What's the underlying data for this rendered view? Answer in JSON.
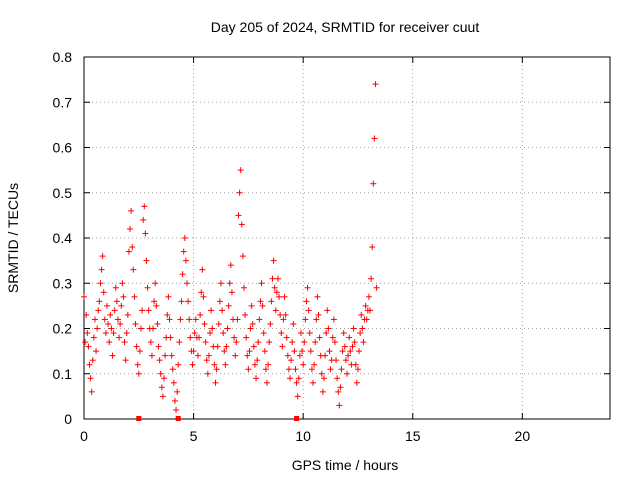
{
  "chart_data": {
    "type": "scatter",
    "title": "Day 205 of 2024, SRMTID for receiver cuut",
    "xlabel": "GPS time / hours",
    "ylabel": "SRMTID / TECUs",
    "xlim": [
      0,
      24
    ],
    "ylim": [
      0,
      0.8
    ],
    "xticks": [
      0,
      5,
      10,
      15,
      20
    ],
    "yticks": [
      0,
      0.1,
      0.2,
      0.3,
      0.4,
      0.5,
      0.6,
      0.7,
      0.8
    ],
    "grid": true,
    "marker": "plus",
    "color": "#ff0000",
    "series": [
      {
        "name": "SRMTID",
        "points": [
          [
            0.0,
            0.27
          ],
          [
            0.05,
            0.17
          ],
          [
            0.1,
            0.23
          ],
          [
            0.15,
            0.19
          ],
          [
            0.2,
            0.16
          ],
          [
            0.25,
            0.12
          ],
          [
            0.3,
            0.09
          ],
          [
            0.35,
            0.06
          ],
          [
            0.4,
            0.13
          ],
          [
            0.45,
            0.18
          ],
          [
            0.5,
            0.22
          ],
          [
            0.55,
            0.15
          ],
          [
            0.6,
            0.2
          ],
          [
            0.65,
            0.24
          ],
          [
            0.7,
            0.26
          ],
          [
            0.75,
            0.3
          ],
          [
            0.8,
            0.33
          ],
          [
            0.85,
            0.36
          ],
          [
            0.9,
            0.28
          ],
          [
            0.95,
            0.22
          ],
          [
            1.0,
            0.19
          ],
          [
            1.05,
            0.25
          ],
          [
            1.1,
            0.21
          ],
          [
            1.15,
            0.17
          ],
          [
            1.2,
            0.23
          ],
          [
            1.25,
            0.2
          ],
          [
            1.3,
            0.14
          ],
          [
            1.35,
            0.19
          ],
          [
            1.4,
            0.24
          ],
          [
            1.45,
            0.29
          ],
          [
            1.5,
            0.26
          ],
          [
            1.55,
            0.22
          ],
          [
            1.6,
            0.18
          ],
          [
            1.65,
            0.21
          ],
          [
            1.7,
            0.25
          ],
          [
            1.75,
            0.3
          ],
          [
            1.8,
            0.27
          ],
          [
            1.85,
            0.17
          ],
          [
            1.9,
            0.13
          ],
          [
            1.95,
            0.19
          ],
          [
            2.0,
            0.23
          ],
          [
            2.05,
            0.37
          ],
          [
            2.1,
            0.42
          ],
          [
            2.15,
            0.46
          ],
          [
            2.2,
            0.38
          ],
          [
            2.25,
            0.33
          ],
          [
            2.3,
            0.27
          ],
          [
            2.35,
            0.21
          ],
          [
            2.4,
            0.16
          ],
          [
            2.45,
            0.12
          ],
          [
            2.5,
            0.1
          ],
          [
            2.55,
            0.15
          ],
          [
            2.6,
            0.2
          ],
          [
            2.65,
            0.24
          ],
          [
            2.7,
            0.44
          ],
          [
            2.75,
            0.47
          ],
          [
            2.8,
            0.41
          ],
          [
            2.85,
            0.35
          ],
          [
            2.9,
            0.29
          ],
          [
            2.95,
            0.24
          ],
          [
            3.0,
            0.2
          ],
          [
            3.05,
            0.17
          ],
          [
            3.1,
            0.14
          ],
          [
            3.15,
            0.2
          ],
          [
            3.2,
            0.26
          ],
          [
            3.25,
            0.3
          ],
          [
            3.3,
            0.25
          ],
          [
            3.35,
            0.21
          ],
          [
            3.4,
            0.16
          ],
          [
            3.45,
            0.13
          ],
          [
            3.5,
            0.1
          ],
          [
            3.55,
            0.07
          ],
          [
            3.6,
            0.05
          ],
          [
            3.65,
            0.09
          ],
          [
            3.7,
            0.14
          ],
          [
            3.75,
            0.18
          ],
          [
            3.8,
            0.23
          ],
          [
            3.85,
            0.27
          ],
          [
            3.9,
            0.22
          ],
          [
            3.95,
            0.18
          ],
          [
            4.0,
            0.14
          ],
          [
            4.05,
            0.11
          ],
          [
            4.1,
            0.08
          ],
          [
            4.15,
            0.04
          ],
          [
            4.2,
            0.02
          ],
          [
            4.25,
            0.06
          ],
          [
            4.3,
            0.12
          ],
          [
            4.35,
            0.17
          ],
          [
            4.4,
            0.22
          ],
          [
            4.45,
            0.26
          ],
          [
            4.5,
            0.32
          ],
          [
            4.55,
            0.37
          ],
          [
            4.6,
            0.4
          ],
          [
            4.65,
            0.35
          ],
          [
            4.7,
            0.3
          ],
          [
            4.75,
            0.26
          ],
          [
            4.8,
            0.22
          ],
          [
            4.85,
            0.18
          ],
          [
            4.9,
            0.15
          ],
          [
            4.95,
            0.12
          ],
          [
            5.0,
            0.15
          ],
          [
            5.05,
            0.19
          ],
          [
            5.1,
            0.22
          ],
          [
            5.15,
            0.18
          ],
          [
            5.2,
            0.14
          ],
          [
            5.25,
            0.18
          ],
          [
            5.3,
            0.23
          ],
          [
            5.35,
            0.28
          ],
          [
            5.4,
            0.33
          ],
          [
            5.45,
            0.27
          ],
          [
            5.5,
            0.21
          ],
          [
            5.55,
            0.17
          ],
          [
            5.6,
            0.13
          ],
          [
            5.65,
            0.1
          ],
          [
            5.7,
            0.14
          ],
          [
            5.75,
            0.19
          ],
          [
            5.8,
            0.24
          ],
          [
            5.85,
            0.2
          ],
          [
            5.9,
            0.16
          ],
          [
            5.95,
            0.12
          ],
          [
            6.0,
            0.08
          ],
          [
            6.05,
            0.11
          ],
          [
            6.1,
            0.16
          ],
          [
            6.15,
            0.21
          ],
          [
            6.2,
            0.26
          ],
          [
            6.25,
            0.3
          ],
          [
            6.3,
            0.24
          ],
          [
            6.35,
            0.19
          ],
          [
            6.4,
            0.15
          ],
          [
            6.45,
            0.12
          ],
          [
            6.5,
            0.16
          ],
          [
            6.55,
            0.2
          ],
          [
            6.6,
            0.25
          ],
          [
            6.65,
            0.3
          ],
          [
            6.7,
            0.34
          ],
          [
            6.75,
            0.28
          ],
          [
            6.8,
            0.22
          ],
          [
            6.85,
            0.18
          ],
          [
            6.9,
            0.14
          ],
          [
            6.95,
            0.17
          ],
          [
            7.0,
            0.22
          ],
          [
            7.05,
            0.45
          ],
          [
            7.1,
            0.5
          ],
          [
            7.15,
            0.55
          ],
          [
            7.2,
            0.43
          ],
          [
            7.25,
            0.36
          ],
          [
            7.3,
            0.29
          ],
          [
            7.35,
            0.23
          ],
          [
            7.4,
            0.18
          ],
          [
            7.45,
            0.14
          ],
          [
            7.5,
            0.11
          ],
          [
            7.55,
            0.15
          ],
          [
            7.6,
            0.2
          ],
          [
            7.65,
            0.25
          ],
          [
            7.7,
            0.21
          ],
          [
            7.75,
            0.16
          ],
          [
            7.8,
            0.12
          ],
          [
            7.85,
            0.09
          ],
          [
            7.9,
            0.13
          ],
          [
            7.95,
            0.17
          ],
          [
            8.0,
            0.22
          ],
          [
            8.05,
            0.26
          ],
          [
            8.1,
            0.3
          ],
          [
            8.15,
            0.25
          ],
          [
            8.2,
            0.19
          ],
          [
            8.25,
            0.15
          ],
          [
            8.3,
            0.11
          ],
          [
            8.35,
            0.08
          ],
          [
            8.4,
            0.12
          ],
          [
            8.45,
            0.17
          ],
          [
            8.5,
            0.21
          ],
          [
            8.55,
            0.26
          ],
          [
            8.6,
            0.31
          ],
          [
            8.65,
            0.35
          ],
          [
            8.7,
            0.29
          ],
          [
            8.75,
            0.24
          ],
          [
            8.8,
            0.28
          ],
          [
            8.85,
            0.31
          ],
          [
            8.9,
            0.27
          ],
          [
            8.95,
            0.23
          ],
          [
            9.0,
            0.19
          ],
          [
            9.05,
            0.16
          ],
          [
            9.1,
            0.22
          ],
          [
            9.15,
            0.27
          ],
          [
            9.2,
            0.23
          ],
          [
            9.25,
            0.18
          ],
          [
            9.3,
            0.14
          ],
          [
            9.35,
            0.11
          ],
          [
            9.4,
            0.09
          ],
          [
            9.45,
            0.13
          ],
          [
            9.5,
            0.17
          ],
          [
            9.55,
            0.21
          ],
          [
            9.6,
            0.15
          ],
          [
            9.65,
            0.11
          ],
          [
            9.7,
            0.08
          ],
          [
            9.75,
            0.05
          ],
          [
            9.8,
            0.09
          ],
          [
            9.85,
            0.14
          ],
          [
            9.9,
            0.19
          ],
          [
            9.95,
            0.15
          ],
          [
            10.0,
            0.12
          ],
          [
            10.05,
            0.17
          ],
          [
            10.1,
            0.22
          ],
          [
            10.15,
            0.26
          ],
          [
            10.2,
            0.29
          ],
          [
            10.25,
            0.24
          ],
          [
            10.3,
            0.19
          ],
          [
            10.35,
            0.15
          ],
          [
            10.4,
            0.11
          ],
          [
            10.45,
            0.08
          ],
          [
            10.5,
            0.12
          ],
          [
            10.55,
            0.17
          ],
          [
            10.6,
            0.22
          ],
          [
            10.65,
            0.27
          ],
          [
            10.7,
            0.23
          ],
          [
            10.75,
            0.18
          ],
          [
            10.8,
            0.14
          ],
          [
            10.85,
            0.1
          ],
          [
            10.9,
            0.06
          ],
          [
            10.95,
            0.09
          ],
          [
            11.0,
            0.14
          ],
          [
            11.05,
            0.19
          ],
          [
            11.1,
            0.24
          ],
          [
            11.15,
            0.2
          ],
          [
            11.2,
            0.15
          ],
          [
            11.25,
            0.11
          ],
          [
            11.3,
            0.13
          ],
          [
            11.35,
            0.18
          ],
          [
            11.4,
            0.22
          ],
          [
            11.45,
            0.17
          ],
          [
            11.5,
            0.13
          ],
          [
            11.55,
            0.09
          ],
          [
            11.6,
            0.06
          ],
          [
            11.65,
            0.03
          ],
          [
            11.7,
            0.07
          ],
          [
            11.75,
            0.11
          ],
          [
            11.8,
            0.15
          ],
          [
            11.85,
            0.19
          ],
          [
            11.9,
            0.16
          ],
          [
            11.95,
            0.13
          ],
          [
            12.0,
            0.1
          ],
          [
            12.05,
            0.14
          ],
          [
            12.1,
            0.18
          ],
          [
            12.15,
            0.15
          ],
          [
            12.2,
            0.12
          ],
          [
            12.25,
            0.16
          ],
          [
            12.3,
            0.2
          ],
          [
            12.35,
            0.17
          ],
          [
            12.4,
            0.12
          ],
          [
            12.45,
            0.08
          ],
          [
            12.5,
            0.11
          ],
          [
            12.55,
            0.15
          ],
          [
            12.6,
            0.19
          ],
          [
            12.65,
            0.23
          ],
          [
            12.7,
            0.2
          ],
          [
            12.75,
            0.17
          ],
          [
            12.8,
            0.22
          ],
          [
            12.85,
            0.25
          ],
          [
            12.9,
            0.22
          ],
          [
            12.95,
            0.24
          ],
          [
            13.0,
            0.27
          ],
          [
            13.05,
            0.24
          ],
          [
            13.1,
            0.31
          ],
          [
            13.15,
            0.38
          ],
          [
            13.2,
            0.52
          ],
          [
            13.25,
            0.62
          ],
          [
            13.3,
            0.74
          ],
          [
            13.35,
            0.29
          ]
        ]
      }
    ],
    "axis_markers": [
      2.5,
      4.3,
      9.7
    ]
  }
}
